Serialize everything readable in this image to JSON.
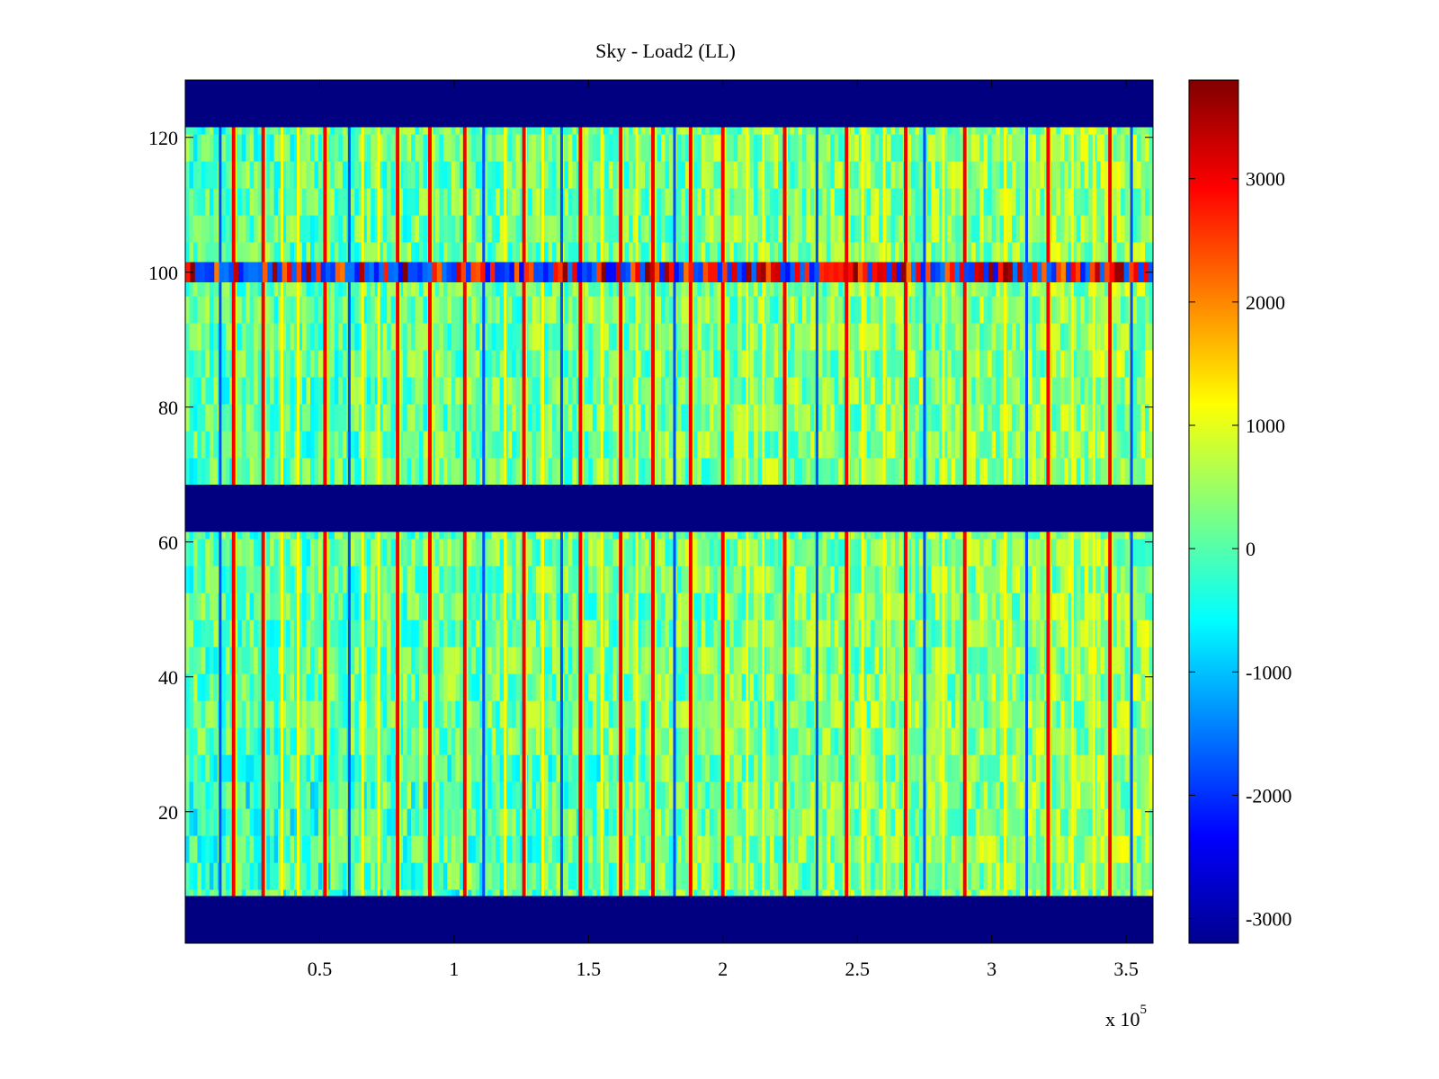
{
  "chart_data": {
    "type": "heatmap",
    "title": "Sky - Load2 (LL)",
    "xlabel": "",
    "ylabel": "",
    "x_exponent_label": "x 10",
    "x_exponent_power": "5",
    "xlim": [
      0,
      3.6
    ],
    "ylim": [
      0.5,
      128.5
    ],
    "x_ticks": [
      {
        "value": 0.5,
        "label": "0.5"
      },
      {
        "value": 1,
        "label": "1"
      },
      {
        "value": 1.5,
        "label": "1.5"
      },
      {
        "value": 2,
        "label": "2"
      },
      {
        "value": 2.5,
        "label": "2.5"
      },
      {
        "value": 3,
        "label": "3"
      },
      {
        "value": 3.5,
        "label": "3.5"
      }
    ],
    "y_ticks": [
      {
        "value": 20,
        "label": "20"
      },
      {
        "value": 40,
        "label": "40"
      },
      {
        "value": 60,
        "label": "60"
      },
      {
        "value": 80,
        "label": "80"
      },
      {
        "value": 100,
        "label": "100"
      },
      {
        "value": 120,
        "label": "120"
      }
    ],
    "colormap": "jet",
    "clim": [
      -3200,
      3800
    ],
    "colorbar_ticks": [
      {
        "value": 3000,
        "label": "3000"
      },
      {
        "value": 2000,
        "label": "2000"
      },
      {
        "value": 1000,
        "label": "1000"
      },
      {
        "value": 0,
        "label": "0"
      },
      {
        "value": -1000,
        "label": "-1000"
      },
      {
        "value": -2000,
        "label": "-2000"
      },
      {
        "value": -3000,
        "label": "-3000"
      }
    ],
    "masked_row_ranges": [
      [
        0.5,
        7.5
      ],
      [
        61.5,
        68.5
      ],
      [
        121.5,
        128.5
      ]
    ],
    "masked_value": -3200,
    "background_value": 0,
    "hot_row_band": {
      "rows": [
        98.5,
        101.5
      ],
      "emphasis": "alternating red / blue in later columns"
    },
    "strong_stripes_x": [
      0.18,
      0.29,
      0.52,
      0.79,
      0.91,
      1.04,
      1.26,
      1.47,
      1.62,
      1.74,
      1.88,
      2.0,
      2.23,
      2.46,
      2.68,
      2.9,
      3.21,
      3.44
    ],
    "weak_stripes_x": [
      0.13,
      0.36,
      0.42,
      0.61,
      0.66,
      0.72,
      1.11,
      1.19,
      1.33,
      1.4,
      1.55,
      1.68,
      1.82,
      2.09,
      2.15,
      2.35,
      2.52,
      2.6,
      2.75,
      2.82,
      3.05,
      3.13,
      3.3,
      3.38,
      3.52
    ]
  }
}
